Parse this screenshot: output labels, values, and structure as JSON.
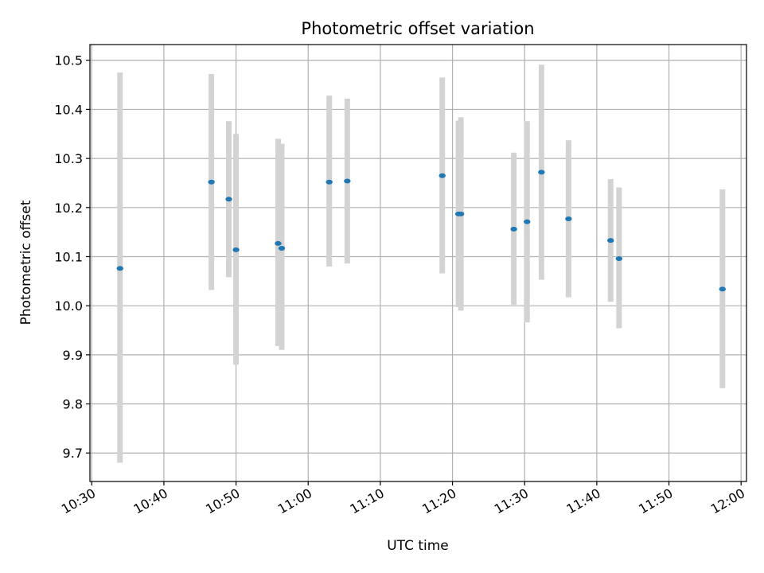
{
  "chart_data": {
    "type": "scatter",
    "title": "Photometric offset variation",
    "xlabel": "UTC time",
    "ylabel": "Photometric offset",
    "xlim": [
      "10:29:45",
      "12:00:45"
    ],
    "ylim": [
      9.642,
      10.532
    ],
    "grid": true,
    "x_ticks": [
      "10:30",
      "10:40",
      "10:50",
      "11:00",
      "11:10",
      "11:20",
      "11:30",
      "11:40",
      "11:50",
      "12:00"
    ],
    "y_ticks": [
      9.7,
      9.8,
      9.9,
      10.0,
      10.1,
      10.2,
      10.3,
      10.4,
      10.5
    ],
    "marker_color": "#1f77b4",
    "errorbar_color": "#d3d3d3",
    "points": [
      {
        "time": "10:33:55",
        "y": 10.076,
        "y_low": 9.68,
        "y_high": 10.475
      },
      {
        "time": "10:46:35",
        "y": 10.252,
        "y_low": 10.032,
        "y_high": 10.472
      },
      {
        "time": "10:49:00",
        "y": 10.217,
        "y_low": 10.058,
        "y_high": 10.376
      },
      {
        "time": "10:50:00",
        "y": 10.114,
        "y_low": 9.88,
        "y_high": 10.35
      },
      {
        "time": "10:55:50",
        "y": 10.127,
        "y_low": 9.918,
        "y_high": 10.34
      },
      {
        "time": "10:56:20",
        "y": 10.117,
        "y_low": 9.91,
        "y_high": 10.33
      },
      {
        "time": "11:02:55",
        "y": 10.252,
        "y_low": 10.08,
        "y_high": 10.428
      },
      {
        "time": "11:05:25",
        "y": 10.254,
        "y_low": 10.086,
        "y_high": 10.422
      },
      {
        "time": "11:18:35",
        "y": 10.265,
        "y_low": 10.066,
        "y_high": 10.465
      },
      {
        "time": "11:20:50",
        "y": 10.187,
        "y_low": 9.997,
        "y_high": 10.377
      },
      {
        "time": "11:21:10",
        "y": 10.187,
        "y_low": 9.99,
        "y_high": 10.384
      },
      {
        "time": "11:28:30",
        "y": 10.156,
        "y_low": 10.002,
        "y_high": 10.312
      },
      {
        "time": "11:30:20",
        "y": 10.171,
        "y_low": 9.966,
        "y_high": 10.376
      },
      {
        "time": "11:32:20",
        "y": 10.272,
        "y_low": 10.053,
        "y_high": 10.491
      },
      {
        "time": "11:36:05",
        "y": 10.177,
        "y_low": 10.017,
        "y_high": 10.337
      },
      {
        "time": "11:41:55",
        "y": 10.133,
        "y_low": 10.008,
        "y_high": 10.258
      },
      {
        "time": "11:43:05",
        "y": 10.096,
        "y_low": 9.954,
        "y_high": 10.241
      },
      {
        "time": "11:57:25",
        "y": 10.034,
        "y_low": 9.832,
        "y_high": 10.237
      }
    ]
  }
}
